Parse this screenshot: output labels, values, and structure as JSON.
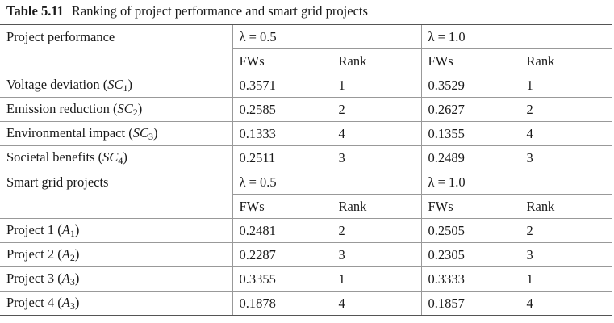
{
  "caption": {
    "label": "Table 5.11",
    "text": "Ranking of project performance and smart grid projects"
  },
  "section1": {
    "header": "Project performance",
    "lambda1": "λ = 0.5",
    "lambda2": "λ = 1.0",
    "col_fws": "FWs",
    "col_rank": "Rank",
    "rows": [
      {
        "name": "Voltage deviation (",
        "sym": "SC",
        "sub": "1",
        "fw1": "0.3571",
        "r1": "1",
        "fw2": "0.3529",
        "r2": "1"
      },
      {
        "name": "Emission reduction (",
        "sym": "SC",
        "sub": "2",
        "fw1": "0.2585",
        "r1": "2",
        "fw2": "0.2627",
        "r2": "2"
      },
      {
        "name": "Environmental impact (",
        "sym": "SC",
        "sub": "3",
        "fw1": "0.1333",
        "r1": "4",
        "fw2": "0.1355",
        "r2": "4"
      },
      {
        "name": "Societal benefits (",
        "sym": "SC",
        "sub": "4",
        "fw1": "0.2511",
        "r1": "3",
        "fw2": "0.2489",
        "r2": "3"
      }
    ]
  },
  "section2": {
    "header": "Smart grid projects",
    "lambda1": "λ = 0.5",
    "lambda2": "λ = 1.0",
    "col_fws": "FWs",
    "col_rank": "Rank",
    "rows": [
      {
        "name": "Project 1 (",
        "sym": "A",
        "sub": "1",
        "fw1": "0.2481",
        "r1": "2",
        "fw2": "0.2505",
        "r2": "2"
      },
      {
        "name": "Project 2 (",
        "sym": "A",
        "sub": "2",
        "fw1": "0.2287",
        "r1": "3",
        "fw2": "0.2305",
        "r2": "3"
      },
      {
        "name": "Project 3 (",
        "sym": "A",
        "sub": "3",
        "fw1": "0.3355",
        "r1": "1",
        "fw2": "0.3333",
        "r2": "1"
      },
      {
        "name": "Project 4 (",
        "sym": "A",
        "sub": "3",
        "fw1": "0.1878",
        "r1": "4",
        "fw2": "0.1857",
        "r2": "4"
      }
    ]
  }
}
